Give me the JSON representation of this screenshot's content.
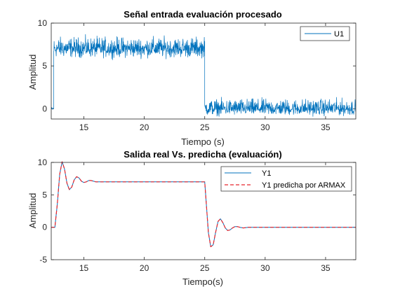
{
  "figure": {
    "background": "#ffffff",
    "colors": {
      "axis": "#262626",
      "series_blue": "#0072BD",
      "series_red": "#E8262D"
    }
  },
  "chart_data": [
    {
      "type": "line",
      "title": "Señal entrada evaluación procesado",
      "xlabel": "Tiempo (s)",
      "ylabel": "Amplitud",
      "xlim": [
        12.3,
        37.5
      ],
      "ylim": [
        -1.2,
        10
      ],
      "xticks": [
        15,
        20,
        25,
        30,
        35
      ],
      "yticks": [
        0,
        5,
        10
      ],
      "grid": false,
      "legend_position": "top-right",
      "series": [
        {
          "name": "U1",
          "color": "#0072BD",
          "style": "solid",
          "segments": [
            {
              "x_start": 12.3,
              "x_end": 12.5,
              "level": 0.0,
              "noise_band": [
                -0.3,
                0.3
              ]
            },
            {
              "x_start": 12.5,
              "x_end": 25.0,
              "level": 7.0,
              "noise_band": [
                5.6,
                8.9
              ]
            },
            {
              "x_start": 25.0,
              "x_end": 37.5,
              "level": 0.0,
              "noise_band": [
                -1.1,
                1.6
              ]
            }
          ]
        }
      ]
    },
    {
      "type": "line",
      "title": "Salida real Vs. predicha (evaluación)",
      "xlabel": "Tiempo(s)",
      "ylabel": "Amplitud",
      "xlim": [
        12.3,
        37.5
      ],
      "ylim": [
        -5,
        10
      ],
      "xticks": [
        15,
        20,
        25,
        30,
        35
      ],
      "yticks": [
        -5,
        0,
        5,
        10
      ],
      "grid": false,
      "legend_position": "top-right",
      "series": [
        {
          "name": "Y1",
          "color": "#0072BD",
          "style": "solid",
          "x": [
            12.3,
            12.6,
            12.8,
            13.0,
            13.2,
            13.4,
            13.6,
            13.8,
            14.0,
            14.2,
            14.4,
            14.6,
            14.8,
            15.0,
            15.2,
            15.4,
            15.6,
            15.8,
            16.0,
            17.0,
            20.0,
            24.0,
            24.9,
            25.0,
            25.1,
            25.3,
            25.5,
            25.7,
            25.9,
            26.1,
            26.3,
            26.5,
            26.7,
            26.9,
            27.1,
            27.3,
            27.5,
            27.7,
            27.9,
            28.2,
            28.6,
            29.0,
            30.0,
            32.0,
            34.0,
            36.0,
            37.5
          ],
          "y": [
            0.0,
            0.0,
            3.5,
            8.2,
            10.1,
            9.0,
            6.8,
            5.8,
            6.2,
            7.3,
            7.8,
            7.6,
            7.1,
            6.9,
            7.0,
            7.2,
            7.2,
            7.1,
            7.0,
            7.0,
            7.0,
            7.0,
            7.0,
            7.0,
            4.5,
            -0.8,
            -3.0,
            -2.7,
            -0.8,
            0.9,
            1.3,
            0.7,
            -0.1,
            -0.5,
            -0.4,
            -0.1,
            0.1,
            0.1,
            0.0,
            -0.1,
            0.0,
            0.0,
            0.0,
            0.0,
            0.0,
            0.0,
            0.0
          ]
        },
        {
          "name": "Y1 predicha por ARMAX",
          "color": "#E8262D",
          "style": "dashed",
          "same_as": "Y1"
        }
      ]
    }
  ]
}
